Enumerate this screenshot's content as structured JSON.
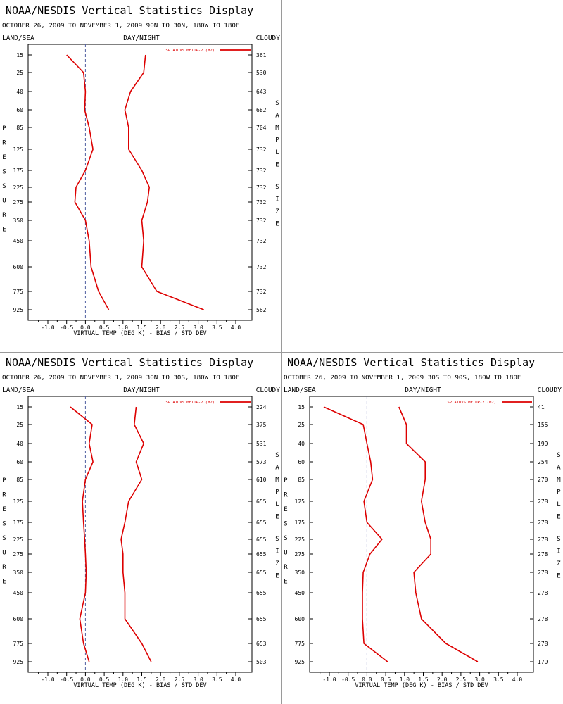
{
  "panels": [
    {
      "title": "NOAA/NESDIS Vertical Statistics Display",
      "subtitle": "OCTOBER 26, 2009 TO NOVEMBER 1, 2009 90N TO 30N, 180W TO 180E",
      "label_left": "LAND/SEA",
      "label_center": "DAY/NIGHT",
      "label_right": "CLOUDY"
    },
    {
      "title": "NOAA/NESDIS Vertical Statistics Display",
      "subtitle": "OCTOBER 26, 2009 TO NOVEMBER 1, 2009 30N TO 30S, 180W TO 180E",
      "label_left": "LAND/SEA",
      "label_center": "DAY/NIGHT",
      "label_right": "CLOUDY"
    },
    {
      "title": "NOAA/NESDIS Vertical Statistics Display",
      "subtitle": "OCTOBER 26, 2009 TO NOVEMBER 1, 2009 30S TO 90S, 180W TO 180E",
      "label_left": "LAND/SEA",
      "label_center": "DAY/NIGHT",
      "label_right": "CLOUDY"
    }
  ],
  "chart_data": [
    {
      "type": "line",
      "xlabel": "VIRTUAL TEMP (DEG K) - BIAS / STD DEV",
      "ylabel": "PRESSURE",
      "y2label": "SAMPLE SIZE",
      "xlim": [
        -1.5,
        4.5
      ],
      "xticks": [
        "-1.0",
        "-0.5",
        "0.0",
        "0.5",
        "1.0",
        "1.5",
        "2.0",
        "2.5",
        "3.0",
        "3.5",
        "4.0"
      ],
      "pressure_levels": [
        "15",
        "25",
        "40",
        "60",
        "85",
        "125",
        "175",
        "225",
        "275",
        "350",
        "450",
        "600",
        "775",
        "925"
      ],
      "sample_size": [
        "361",
        "530",
        "643",
        "682",
        "704",
        "732",
        "732",
        "732",
        "732",
        "732",
        "732",
        "732",
        "732",
        "562"
      ],
      "legend": "SP ATOVS METOP-2 (M2)",
      "line_color": "#dd0000",
      "grid": false,
      "legend_position": "top-right",
      "series": [
        {
          "role": "bias",
          "values": [
            -0.5,
            -0.05,
            0.0,
            -0.02,
            0.1,
            0.2,
            0.0,
            -0.25,
            -0.28,
            0.0,
            0.1,
            0.15,
            0.35,
            0.62
          ]
        },
        {
          "role": "std_dev",
          "values": [
            1.6,
            1.55,
            1.2,
            1.05,
            1.15,
            1.15,
            1.5,
            1.7,
            1.65,
            1.5,
            1.55,
            1.5,
            1.9,
            3.15
          ]
        }
      ]
    },
    {
      "type": "line",
      "xlabel": "VIRTUAL TEMP (DEG K) - BIAS / STD DEV",
      "ylabel": "PRESSURE",
      "y2label": "SAMPLE SIZE",
      "xlim": [
        -1.5,
        4.5
      ],
      "xticks": [
        "-1.0",
        "-0.5",
        "0.0",
        "0.5",
        "1.0",
        "1.5",
        "2.0",
        "2.5",
        "3.0",
        "3.5",
        "4.0"
      ],
      "pressure_levels": [
        "15",
        "25",
        "40",
        "60",
        "85",
        "125",
        "175",
        "225",
        "275",
        "350",
        "450",
        "600",
        "775",
        "925"
      ],
      "sample_size": [
        "224",
        "375",
        "531",
        "573",
        "610",
        "655",
        "655",
        "655",
        "655",
        "655",
        "655",
        "655",
        "653",
        "503"
      ],
      "legend": "SP ATOVS METOP-2 (M2)",
      "line_color": "#dd0000",
      "grid": false,
      "legend_position": "top-right",
      "series": [
        {
          "role": "bias",
          "values": [
            -0.4,
            0.18,
            0.1,
            0.2,
            0.0,
            -0.08,
            -0.05,
            -0.02,
            0.0,
            0.02,
            0.0,
            -0.15,
            -0.05,
            0.1
          ]
        },
        {
          "role": "std_dev",
          "values": [
            1.35,
            1.3,
            1.55,
            1.35,
            1.5,
            1.15,
            1.05,
            0.95,
            1.0,
            1.0,
            1.05,
            1.05,
            1.5,
            1.75
          ]
        }
      ]
    },
    {
      "type": "line",
      "xlabel": "VIRTUAL TEMP (DEG K) - BIAS / STD DEV",
      "ylabel": "PRESSURE",
      "y2label": "SAMPLE SIZE",
      "xlim": [
        -1.5,
        4.5
      ],
      "xticks": [
        "-1.0",
        "-0.5",
        "0.0",
        "0.5",
        "1.0",
        "1.5",
        "2.0",
        "2.5",
        "3.0",
        "3.5",
        "4.0"
      ],
      "pressure_levels": [
        "15",
        "25",
        "40",
        "60",
        "85",
        "125",
        "175",
        "225",
        "275",
        "350",
        "450",
        "600",
        "775",
        "925"
      ],
      "sample_size": [
        "41",
        "155",
        "199",
        "254",
        "270",
        "278",
        "278",
        "278",
        "278",
        "278",
        "278",
        "278",
        "278",
        "179"
      ],
      "legend": "SP ATOVS METOP-2 (M2)",
      "line_color": "#dd0000",
      "grid": false,
      "legend_position": "top-right",
      "series": [
        {
          "role": "bias",
          "values": [
            -1.15,
            -0.1,
            0.0,
            0.1,
            0.15,
            -0.08,
            0.0,
            0.4,
            0.08,
            -0.1,
            -0.12,
            -0.12,
            -0.08,
            0.55
          ]
        },
        {
          "role": "std_dev",
          "values": [
            0.85,
            1.05,
            1.05,
            1.55,
            1.55,
            1.45,
            1.55,
            1.7,
            1.7,
            1.25,
            1.3,
            1.45,
            2.1,
            2.95
          ]
        }
      ]
    }
  ]
}
